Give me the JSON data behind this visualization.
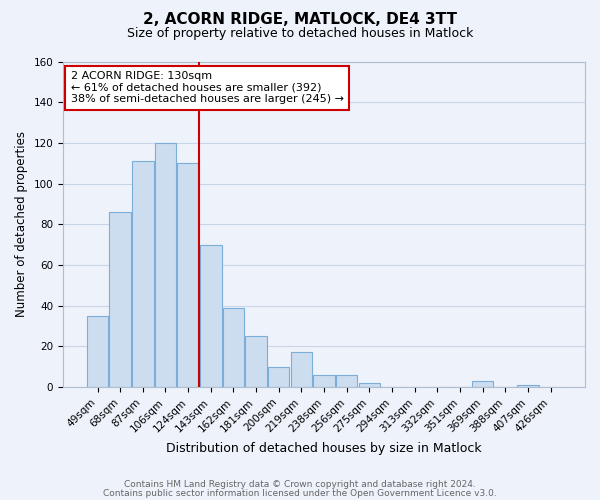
{
  "title1": "2, ACORN RIDGE, MATLOCK, DE4 3TT",
  "title2": "Size of property relative to detached houses in Matlock",
  "xlabel": "Distribution of detached houses by size in Matlock",
  "ylabel": "Number of detached properties",
  "bin_labels": [
    "49sqm",
    "68sqm",
    "87sqm",
    "106sqm",
    "124sqm",
    "143sqm",
    "162sqm",
    "181sqm",
    "200sqm",
    "219sqm",
    "238sqm",
    "256sqm",
    "275sqm",
    "294sqm",
    "313sqm",
    "332sqm",
    "351sqm",
    "369sqm",
    "388sqm",
    "407sqm",
    "426sqm"
  ],
  "bar_heights": [
    35,
    86,
    111,
    120,
    110,
    70,
    39,
    25,
    10,
    17,
    6,
    6,
    2,
    0,
    0,
    0,
    0,
    3,
    0,
    1,
    0
  ],
  "bar_color": "#ccddf0",
  "bar_edge_color": "#7aadd8",
  "highlight_line_index": 4,
  "highlight_color": "#cc0000",
  "ylim": [
    0,
    160
  ],
  "yticks": [
    0,
    20,
    40,
    60,
    80,
    100,
    120,
    140,
    160
  ],
  "annotation_title": "2 ACORN RIDGE: 130sqm",
  "annotation_line1": "← 61% of detached houses are smaller (392)",
  "annotation_line2": "38% of semi-detached houses are larger (245) →",
  "annotation_box_color": "#ffffff",
  "annotation_box_edge": "#cc0000",
  "footer1": "Contains HM Land Registry data © Crown copyright and database right 2024.",
  "footer2": "Contains public sector information licensed under the Open Government Licence v3.0.",
  "grid_color": "#c8d4e8",
  "background_color": "#eef2fa",
  "title1_fontsize": 11,
  "title2_fontsize": 9,
  "ylabel_fontsize": 8.5,
  "xlabel_fontsize": 9,
  "tick_fontsize": 7.5,
  "ann_fontsize": 8,
  "footer_fontsize": 6.5
}
